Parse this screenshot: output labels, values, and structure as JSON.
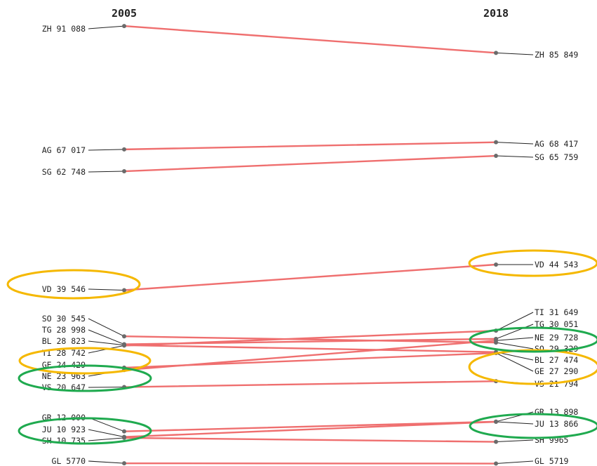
{
  "chart_data": {
    "type": "line",
    "x": [
      "2005",
      "2018"
    ],
    "columns": [
      "2005",
      "2018"
    ],
    "series": [
      {
        "name": "ZH",
        "values": [
          91088,
          85849
        ],
        "label_2005": "ZH 91 088",
        "label_2018": "ZH 85 849"
      },
      {
        "name": "AG",
        "values": [
          67017,
          68417
        ],
        "label_2005": "AG 67 017",
        "label_2018": "AG 68 417"
      },
      {
        "name": "SG",
        "values": [
          62748,
          65759
        ],
        "label_2005": "SG 62 748",
        "label_2018": "SG 65 759"
      },
      {
        "name": "VD",
        "values": [
          39546,
          44543
        ],
        "label_2005": "VD 39 546",
        "label_2018": "VD 44 543"
      },
      {
        "name": "SO",
        "values": [
          30545,
          29329
        ],
        "label_2005": "SO 30 545",
        "label_2018": "SO 29 329"
      },
      {
        "name": "TG",
        "values": [
          28998,
          30051
        ],
        "label_2005": "TG 28 998",
        "label_2018": "TG 30 051"
      },
      {
        "name": "BL",
        "values": [
          28823,
          27474
        ],
        "label_2005": "BL 28 823",
        "label_2018": "BL 27 474"
      },
      {
        "name": "TI",
        "values": [
          28742,
          31649
        ],
        "label_2005": "TI 28 742",
        "label_2018": "TI 31 649"
      },
      {
        "name": "GE",
        "values": [
          24429,
          27290
        ],
        "label_2005": "GE 24 429",
        "label_2018": "GE 27 290"
      },
      {
        "name": "NE",
        "values": [
          23963,
          29728
        ],
        "label_2005": "NE 23 963",
        "label_2018": "NE 29 728"
      },
      {
        "name": "VS",
        "values": [
          20647,
          21794
        ],
        "label_2005": "VS 20 647",
        "label_2018": "VS 21 794"
      },
      {
        "name": "GR",
        "values": [
          12000,
          13898
        ],
        "label_2005": "GR 12 000",
        "label_2018": "GR 13 898"
      },
      {
        "name": "JU",
        "values": [
          10923,
          13866
        ],
        "label_2005": "JU 10 923",
        "label_2018": "JU 13 866"
      },
      {
        "name": "SH",
        "values": [
          10735,
          9965
        ],
        "label_2005": "SH 10 735",
        "label_2018": "SH 9965"
      },
      {
        "name": "GL",
        "values": [
          5770,
          5719
        ],
        "label_2005": "GL 5770",
        "label_2018": "GL 5719"
      }
    ],
    "highlights": [
      {
        "series": "VD",
        "side": "2005",
        "color": "#f5b800"
      },
      {
        "series": "VD",
        "side": "2018",
        "color": "#f5b800"
      },
      {
        "series": "GE",
        "side": "2005",
        "color": "#f5b800"
      },
      {
        "series": "GE",
        "side": "2018",
        "color": "#f5b800"
      },
      {
        "series": "NE",
        "side": "2005",
        "color": "#1faa4f"
      },
      {
        "series": "NE",
        "side": "2018",
        "color": "#1faa4f"
      },
      {
        "series": "JU",
        "side": "2005",
        "color": "#1faa4f"
      },
      {
        "series": "JU",
        "side": "2018",
        "color": "#1faa4f"
      }
    ],
    "line_color": "#ef6f6f",
    "point_color": "#6b6b6b",
    "grid": false
  }
}
